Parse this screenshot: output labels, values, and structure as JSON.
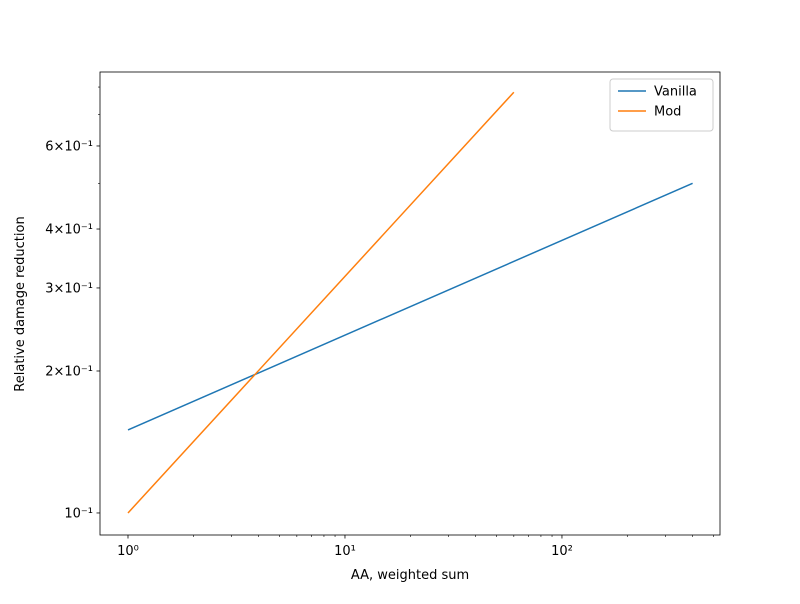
{
  "chart_data": {
    "type": "line",
    "log_x": true,
    "log_y": true,
    "grid": false,
    "legend": "upper right",
    "xlabel": "AA, weighted sum",
    "ylabel": "Relative damage reduction",
    "xlim": [
      0.743,
      535
    ],
    "ylim": [
      0.0898,
      0.861
    ],
    "xticks": [
      {
        "value": 1,
        "label": "10⁰"
      },
      {
        "value": 10,
        "label": "10¹"
      },
      {
        "value": 100,
        "label": "10²"
      }
    ],
    "xminorticks": [
      2,
      3,
      4,
      5,
      6,
      7,
      8,
      9,
      20,
      30,
      40,
      50,
      60,
      70,
      80,
      90,
      200,
      300,
      400,
      500
    ],
    "yticks": [
      {
        "value": 0.1,
        "label": "10⁻¹"
      },
      {
        "value": 0.2,
        "label": "2×10⁻¹"
      },
      {
        "value": 0.3,
        "label": "3×10⁻¹"
      },
      {
        "value": 0.4,
        "label": "4×10⁻¹"
      },
      {
        "value": 0.6,
        "label": "6×10⁻¹"
      }
    ],
    "yminorticks": [
      0.5,
      0.7,
      0.8
    ],
    "series": [
      {
        "name": "Vanilla",
        "color": "#1f77b4",
        "x": [
          1,
          400
        ],
        "values": [
          0.15,
          0.5
        ]
      },
      {
        "name": "Mod",
        "color": "#ff7f0e",
        "x": [
          1,
          60
        ],
        "values": [
          0.1,
          0.78
        ]
      }
    ]
  }
}
